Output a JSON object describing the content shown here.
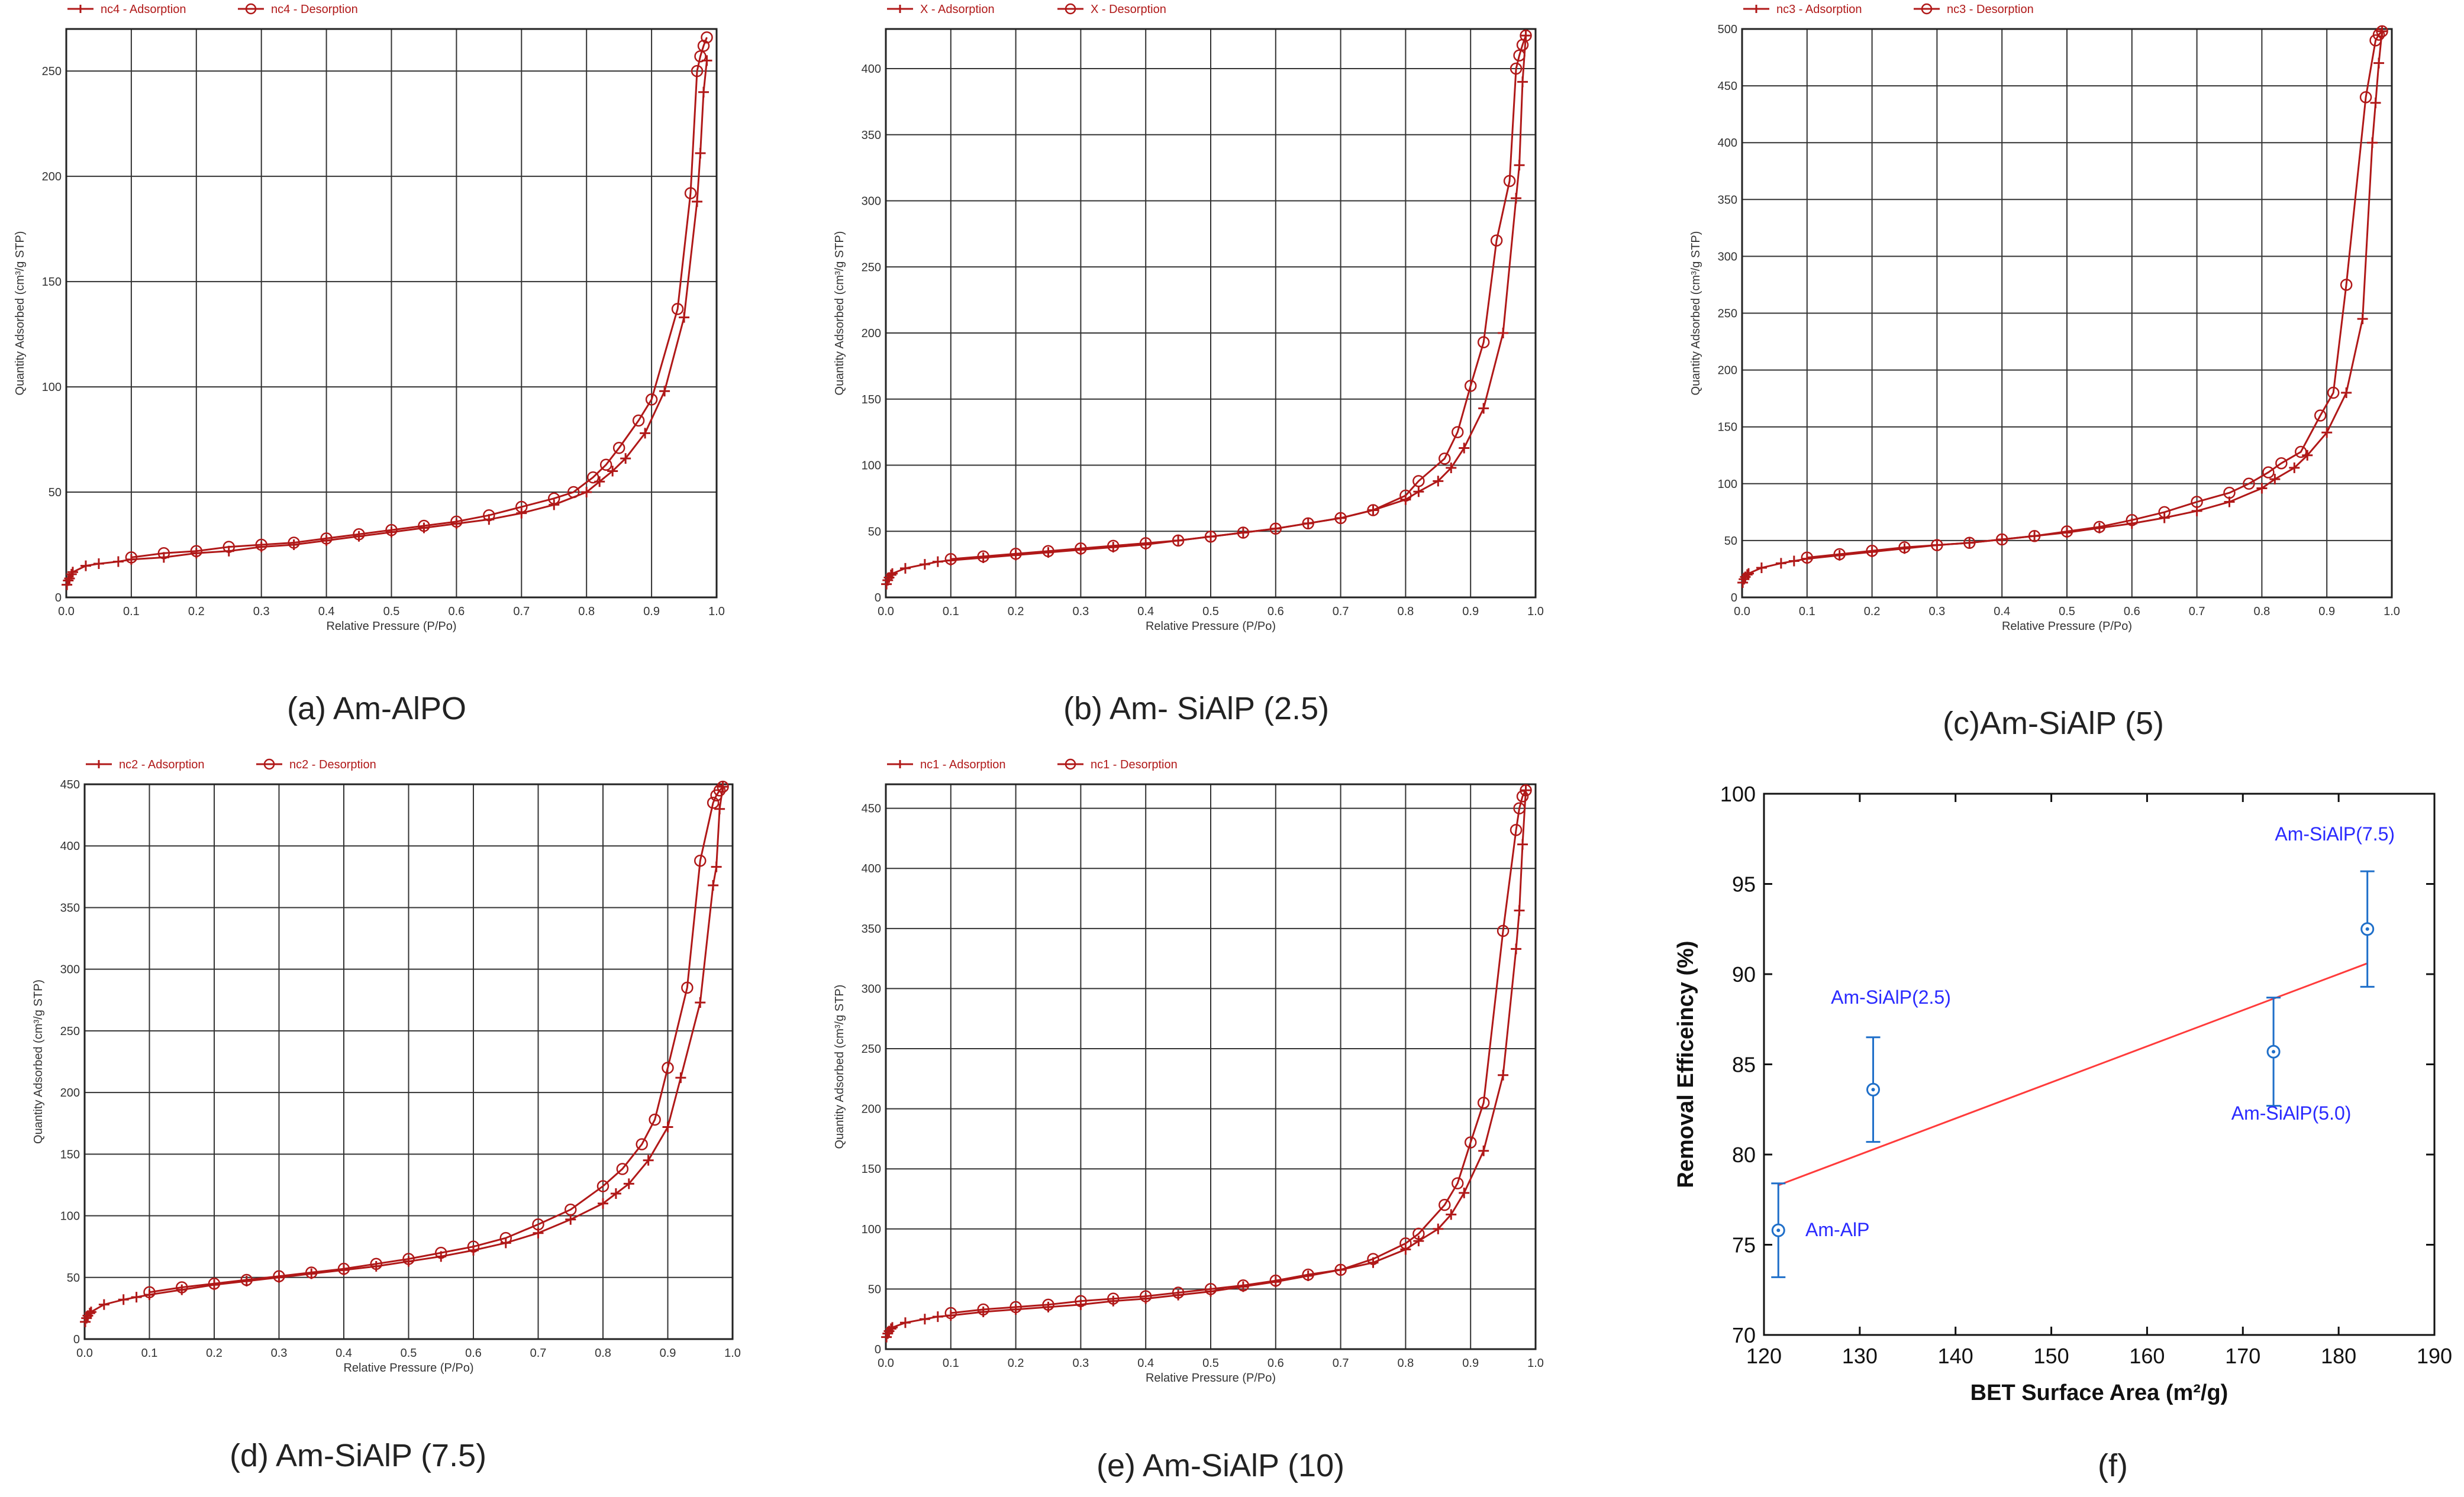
{
  "figure": {
    "panels": [
      {
        "caption": "(a) Am-AlPO"
      },
      {
        "caption": "(b) Am- SiAlP (2.5)"
      },
      {
        "caption": "(c)Am-SiAlP (5)"
      },
      {
        "caption": "(d) Am-SiAlP (7.5)"
      },
      {
        "caption": "(e) Am-SiAlP (10)"
      },
      {
        "caption": "(f)"
      }
    ]
  },
  "chart_data": [
    {
      "type": "line",
      "panel": "a",
      "xlabel": "Relative Pressure (P/Po)",
      "ylabel": "Quantity Adsorbed (cm³/g STP)",
      "xlim": [
        0,
        1.0
      ],
      "ylim": [
        0,
        270
      ],
      "xticks": [
        "0.0",
        "0.1",
        "0.2",
        "0.3",
        "0.4",
        "0.5",
        "0.6",
        "0.7",
        "0.8",
        "0.9",
        "1.0"
      ],
      "yticks": [
        0,
        50,
        100,
        150,
        200,
        250
      ],
      "legend": [
        "nc4 - Adsorption",
        "nc4 - Desorption"
      ],
      "series": [
        {
          "name": "nc4 - Adsorption",
          "marker": "plus",
          "x": [
            0.001,
            0.003,
            0.005,
            0.008,
            0.01,
            0.03,
            0.05,
            0.08,
            0.1,
            0.15,
            0.2,
            0.25,
            0.3,
            0.35,
            0.4,
            0.45,
            0.5,
            0.55,
            0.6,
            0.65,
            0.7,
            0.75,
            0.8,
            0.82,
            0.84,
            0.86,
            0.89,
            0.92,
            0.95,
            0.97,
            0.975,
            0.98,
            0.985
          ],
          "y": [
            6,
            8,
            9,
            11,
            12,
            15,
            16,
            17,
            18,
            19,
            21,
            22,
            24,
            25,
            27,
            29,
            31,
            33,
            35,
            37,
            40,
            44,
            50,
            55,
            60,
            66,
            78,
            98,
            133,
            188,
            211,
            240,
            255
          ]
        },
        {
          "name": "nc4 - Desorption",
          "marker": "circle",
          "x": [
            0.985,
            0.98,
            0.975,
            0.97,
            0.96,
            0.94,
            0.9,
            0.88,
            0.85,
            0.83,
            0.81,
            0.78,
            0.75,
            0.7,
            0.65,
            0.6,
            0.55,
            0.5,
            0.45,
            0.4,
            0.35,
            0.3,
            0.25,
            0.2,
            0.15,
            0.1
          ],
          "y": [
            266,
            262,
            257,
            250,
            192,
            137,
            94,
            84,
            71,
            63,
            57,
            50,
            47,
            43,
            39,
            36,
            34,
            32,
            30,
            28,
            26,
            25,
            24,
            22,
            21,
            19
          ]
        }
      ]
    },
    {
      "type": "line",
      "panel": "b",
      "xlabel": "Relative Pressure (P/Po)",
      "ylabel": "Quantity Adsorbed (cm³/g STP)",
      "xlim": [
        0,
        1.0
      ],
      "ylim": [
        0,
        430
      ],
      "xticks": [
        "0.0",
        "0.1",
        "0.2",
        "0.3",
        "0.4",
        "0.5",
        "0.6",
        "0.7",
        "0.8",
        "0.9",
        "1.0"
      ],
      "yticks": [
        0,
        50,
        100,
        150,
        200,
        250,
        300,
        350,
        400
      ],
      "legend": [
        "X - Adsorption",
        "X - Desorption"
      ],
      "series": [
        {
          "name": "X - Adsorption",
          "marker": "plus",
          "x": [
            0.001,
            0.003,
            0.005,
            0.008,
            0.01,
            0.03,
            0.06,
            0.08,
            0.1,
            0.15,
            0.2,
            0.25,
            0.3,
            0.35,
            0.4,
            0.45,
            0.5,
            0.55,
            0.6,
            0.65,
            0.7,
            0.75,
            0.8,
            0.82,
            0.85,
            0.87,
            0.89,
            0.92,
            0.95,
            0.97,
            0.975,
            0.98,
            0.985
          ],
          "y": [
            10,
            13,
            15,
            17,
            18,
            22,
            25,
            27,
            28,
            30,
            32,
            34,
            36,
            38,
            40,
            43,
            46,
            49,
            52,
            56,
            60,
            66,
            74,
            80,
            88,
            98,
            113,
            143,
            200,
            302,
            327,
            390,
            425
          ]
        },
        {
          "name": "X - Desorption",
          "marker": "circle",
          "x": [
            0.985,
            0.98,
            0.975,
            0.97,
            0.96,
            0.94,
            0.92,
            0.9,
            0.88,
            0.86,
            0.82,
            0.8,
            0.75,
            0.7,
            0.65,
            0.6,
            0.55,
            0.5,
            0.45,
            0.4,
            0.35,
            0.3,
            0.25,
            0.2,
            0.15,
            0.1
          ],
          "y": [
            425,
            418,
            410,
            400,
            315,
            270,
            193,
            160,
            125,
            105,
            88,
            77,
            66,
            60,
            56,
            52,
            49,
            46,
            43,
            41,
            39,
            37,
            35,
            33,
            31,
            29
          ]
        }
      ]
    },
    {
      "type": "line",
      "panel": "c",
      "xlabel": "Relative Pressure (P/Po)",
      "ylabel": "Quantity Adsorbed (cm³/g STP)",
      "xlim": [
        0,
        1.0
      ],
      "ylim": [
        0,
        500
      ],
      "xticks": [
        "0.0",
        "0.1",
        "0.2",
        "0.3",
        "0.4",
        "0.5",
        "0.6",
        "0.7",
        "0.8",
        "0.9",
        "1.0"
      ],
      "yticks": [
        0,
        50,
        100,
        150,
        200,
        250,
        300,
        350,
        400,
        450,
        500
      ],
      "legend": [
        "nc3 - Adsorption",
        "nc3 - Desorption"
      ],
      "series": [
        {
          "name": "nc3 - Adsorption",
          "marker": "plus",
          "x": [
            0.001,
            0.003,
            0.005,
            0.008,
            0.01,
            0.03,
            0.06,
            0.08,
            0.1,
            0.15,
            0.2,
            0.25,
            0.3,
            0.35,
            0.4,
            0.45,
            0.5,
            0.55,
            0.6,
            0.65,
            0.7,
            0.75,
            0.8,
            0.82,
            0.85,
            0.87,
            0.9,
            0.93,
            0.955,
            0.97,
            0.975,
            0.98,
            0.985
          ],
          "y": [
            13,
            16,
            18,
            20,
            21,
            26,
            30,
            32,
            34,
            37,
            40,
            43,
            46,
            48,
            51,
            54,
            57,
            61,
            65,
            70,
            76,
            84,
            96,
            104,
            114,
            125,
            145,
            180,
            245,
            400,
            435,
            470,
            498
          ]
        },
        {
          "name": "nc3 - Desorption",
          "marker": "circle",
          "x": [
            0.985,
            0.98,
            0.975,
            0.96,
            0.93,
            0.91,
            0.89,
            0.86,
            0.83,
            0.81,
            0.78,
            0.75,
            0.7,
            0.65,
            0.6,
            0.55,
            0.5,
            0.45,
            0.4,
            0.35,
            0.3,
            0.25,
            0.2,
            0.15,
            0.1
          ],
          "y": [
            498,
            495,
            490,
            440,
            275,
            180,
            160,
            128,
            118,
            110,
            100,
            92,
            84,
            75,
            68,
            62,
            58,
            54,
            51,
            48,
            46,
            44,
            41,
            38,
            35
          ]
        }
      ]
    },
    {
      "type": "line",
      "panel": "d",
      "xlabel": "Relative Pressure (P/Po)",
      "ylabel": "Quantity Adsorbed (cm³/g STP)",
      "xlim": [
        0,
        1.0
      ],
      "ylim": [
        0,
        450
      ],
      "xticks": [
        "0.0",
        "0.1",
        "0.2",
        "0.3",
        "0.4",
        "0.5",
        "0.6",
        "0.7",
        "0.8",
        "0.9",
        "1.0"
      ],
      "yticks": [
        0,
        50,
        100,
        150,
        200,
        250,
        300,
        350,
        400,
        450
      ],
      "legend": [
        "nc2 - Adsorption",
        "nc2 - Desorption"
      ],
      "series": [
        {
          "name": "nc2 - Adsorption",
          "marker": "plus",
          "x": [
            0.001,
            0.003,
            0.005,
            0.008,
            0.01,
            0.03,
            0.06,
            0.08,
            0.1,
            0.15,
            0.2,
            0.25,
            0.3,
            0.35,
            0.4,
            0.45,
            0.5,
            0.55,
            0.6,
            0.65,
            0.7,
            0.75,
            0.8,
            0.82,
            0.84,
            0.87,
            0.9,
            0.92,
            0.95,
            0.97,
            0.975,
            0.98,
            0.985
          ],
          "y": [
            14,
            17,
            19,
            21,
            22,
            28,
            32,
            34,
            36,
            40,
            44,
            47,
            50,
            53,
            56,
            59,
            63,
            67,
            72,
            78,
            86,
            97,
            110,
            118,
            126,
            145,
            172,
            212,
            273,
            368,
            383,
            430,
            448
          ]
        },
        {
          "name": "nc2 - Desorption",
          "marker": "circle",
          "x": [
            0.985,
            0.98,
            0.975,
            0.97,
            0.95,
            0.93,
            0.9,
            0.88,
            0.86,
            0.83,
            0.8,
            0.75,
            0.7,
            0.65,
            0.6,
            0.55,
            0.5,
            0.45,
            0.4,
            0.35,
            0.3,
            0.25,
            0.2,
            0.15,
            0.1
          ],
          "y": [
            448,
            445,
            441,
            435,
            388,
            285,
            220,
            178,
            158,
            138,
            124,
            105,
            93,
            82,
            75,
            70,
            65,
            61,
            57,
            54,
            51,
            48,
            45,
            42,
            38
          ]
        }
      ]
    },
    {
      "type": "line",
      "panel": "e",
      "xlabel": "Relative Pressure (P/Po)",
      "ylabel": "Quantity Adsorbed (cm³/g STP)",
      "xlim": [
        0,
        1.0
      ],
      "ylim": [
        0,
        470
      ],
      "xticks": [
        "0.0",
        "0.1",
        "0.2",
        "0.3",
        "0.4",
        "0.5",
        "0.6",
        "0.7",
        "0.8",
        "0.9",
        "1.0"
      ],
      "yticks": [
        0,
        50,
        100,
        150,
        200,
        250,
        300,
        350,
        400,
        450
      ],
      "legend": [
        "nc1 - Adsorption",
        "nc1 - Desorption"
      ],
      "series": [
        {
          "name": "nc1 - Adsorption",
          "marker": "plus",
          "x": [
            0.001,
            0.003,
            0.005,
            0.008,
            0.01,
            0.03,
            0.06,
            0.08,
            0.1,
            0.15,
            0.2,
            0.25,
            0.3,
            0.35,
            0.4,
            0.45,
            0.5,
            0.55,
            0.6,
            0.65,
            0.7,
            0.75,
            0.8,
            0.82,
            0.85,
            0.87,
            0.89,
            0.92,
            0.95,
            0.97,
            0.975,
            0.98,
            0.985
          ],
          "y": [
            10,
            13,
            15,
            17,
            18,
            22,
            25,
            27,
            28,
            31,
            33,
            35,
            37,
            40,
            42,
            45,
            48,
            52,
            56,
            61,
            66,
            72,
            83,
            90,
            100,
            112,
            130,
            165,
            228,
            333,
            365,
            420,
            465
          ]
        },
        {
          "name": "nc1 - Desorption",
          "marker": "circle",
          "x": [
            0.985,
            0.98,
            0.975,
            0.97,
            0.95,
            0.92,
            0.9,
            0.88,
            0.86,
            0.82,
            0.8,
            0.75,
            0.7,
            0.65,
            0.6,
            0.55,
            0.5,
            0.45,
            0.4,
            0.35,
            0.3,
            0.25,
            0.2,
            0.15,
            0.1
          ],
          "y": [
            465,
            460,
            450,
            432,
            348,
            205,
            172,
            138,
            120,
            96,
            88,
            75,
            66,
            62,
            57,
            53,
            50,
            47,
            44,
            42,
            40,
            37,
            35,
            33,
            30
          ]
        }
      ]
    },
    {
      "type": "scatter",
      "panel": "f",
      "xlabel": "BET Surface Area (m²/g)",
      "ylabel": "Removal Efficeincy (%)",
      "xlim": [
        120,
        190
      ],
      "ylim": [
        70,
        100
      ],
      "xticks": [
        120,
        130,
        140,
        150,
        160,
        170,
        180,
        190
      ],
      "yticks": [
        70,
        75,
        80,
        85,
        90,
        95,
        100
      ],
      "points": [
        {
          "label": "Am-AlP",
          "x": 121.5,
          "y": 75.8,
          "err": 2.6
        },
        {
          "label": "Am-SiAlP(2.5)",
          "x": 131.4,
          "y": 83.6,
          "err": 2.9
        },
        {
          "label": "Am-SiAlP(5.0)",
          "x": 173.2,
          "y": 85.7,
          "err": 3.0
        },
        {
          "label": "Am-SiAlP(7.5)",
          "x": 183.0,
          "y": 92.5,
          "err": 3.2
        }
      ],
      "fit": {
        "x": [
          121.5,
          183.0
        ],
        "y": [
          78.3,
          90.6
        ]
      }
    }
  ],
  "colors": {
    "isotherm_line": "#b01818",
    "grid": "#333333",
    "point": "#1f6fc9",
    "fit": "#ff3b3b",
    "label_text": "#2a2aff"
  }
}
